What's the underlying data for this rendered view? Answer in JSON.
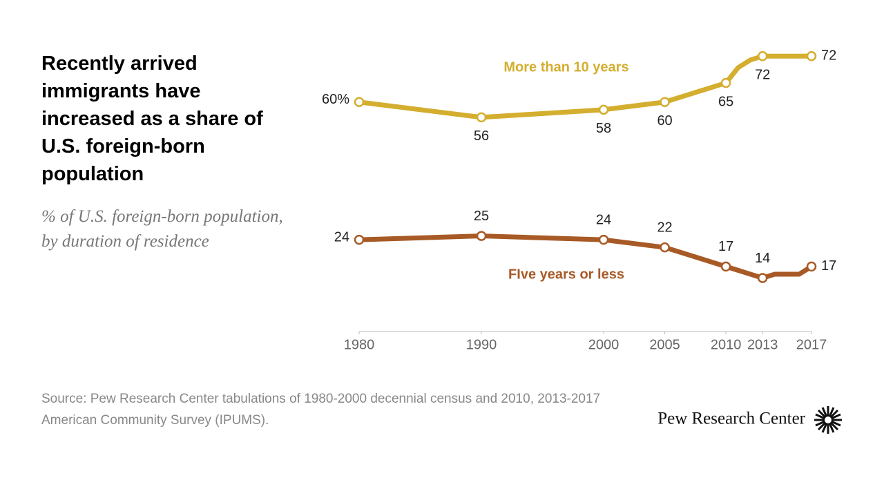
{
  "chart_data": {
    "type": "line",
    "title": "Recently arrived immigrants have increased as a share of U.S. foreign-born population",
    "subtitle": "% of U.S. foreign-born population, by duration of residence",
    "source": "Source: Pew Research Center tabulations of 1980-2000 decennial census and 2010, 2013-2017 American Community Survey (IPUMS).",
    "brand": "Pew Research Center",
    "x": [
      1980,
      1990,
      2000,
      2005,
      2010,
      2011,
      2012,
      2013,
      2014,
      2015,
      2016,
      2017
    ],
    "xlim": [
      1980,
      2017
    ],
    "xticks": [
      1980,
      1990,
      2000,
      2005,
      2010,
      2013,
      2017
    ],
    "ylim": [
      0,
      80
    ],
    "series": [
      {
        "name": "More than 10 years",
        "color": "#d4ae2f",
        "values": [
          60,
          56,
          58,
          60,
          65,
          69,
          71,
          72,
          72,
          72,
          72,
          72
        ],
        "value_labels": [
          "60%",
          "56",
          "58",
          "60",
          "65",
          null,
          null,
          "72",
          null,
          null,
          null,
          "72"
        ]
      },
      {
        "name": "FIve years or less",
        "color": "#a85a26",
        "values": [
          24,
          25,
          24,
          22,
          17,
          16,
          15,
          14,
          15,
          15,
          15,
          17
        ],
        "value_labels": [
          "24",
          "25",
          "24",
          "22",
          "17",
          null,
          null,
          "14",
          null,
          null,
          null,
          "17"
        ]
      }
    ]
  }
}
